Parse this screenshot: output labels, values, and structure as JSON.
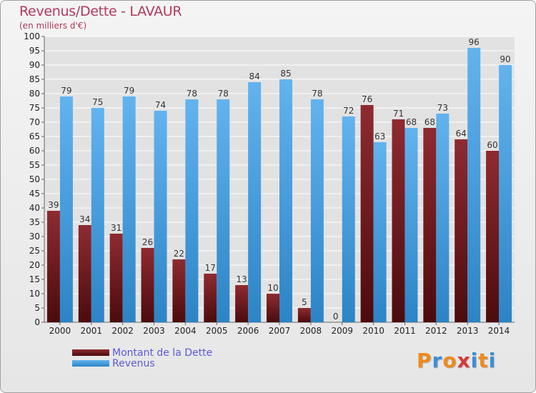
{
  "header": {
    "title": "Revenus/Dette - LAVAUR",
    "subtitle": "(en milliers d'€)"
  },
  "legend": {
    "debt_label": "Montant de la Dette",
    "revenue_label": "Revenus"
  },
  "logo": {
    "text": "Proxiti",
    "letters": [
      "P",
      "r",
      "o",
      "x",
      "i",
      "t",
      "i"
    ],
    "colors": [
      "#f08a1c",
      "#3a8fd6",
      "#f08a1c",
      "#d63a3a",
      "#3a8fd6",
      "#f08a1c",
      "#3a8fd6"
    ]
  },
  "colors": {
    "debt_top": "#8e2b31",
    "debt_bottom": "#4b0b0d",
    "revenue_top": "#62b3ee",
    "revenue_bottom": "#2c84c6",
    "grid": "#ffffff",
    "axis_text": "#222222"
  },
  "chart_data": {
    "type": "bar",
    "categories": [
      "2000",
      "2001",
      "2002",
      "2003",
      "2004",
      "2005",
      "2006",
      "2007",
      "2008",
      "2009",
      "2010",
      "2011",
      "2012",
      "2013",
      "2014"
    ],
    "series": [
      {
        "name": "Montant de la Dette",
        "values": [
          39,
          34,
          31,
          26,
          22,
          17,
          13,
          10,
          5,
          0,
          76,
          71,
          68,
          64,
          60
        ]
      },
      {
        "name": "Revenus",
        "values": [
          79,
          75,
          79,
          74,
          78,
          78,
          84,
          85,
          78,
          72,
          63,
          68,
          73,
          96,
          90
        ]
      }
    ],
    "title": "Revenus/Dette - LAVAUR",
    "subtitle": "(en milliers d'€)",
    "ylim": [
      0,
      100
    ],
    "ytick_step": 5,
    "grid": true,
    "legend_position": "bottom-left",
    "data_labels": true
  }
}
